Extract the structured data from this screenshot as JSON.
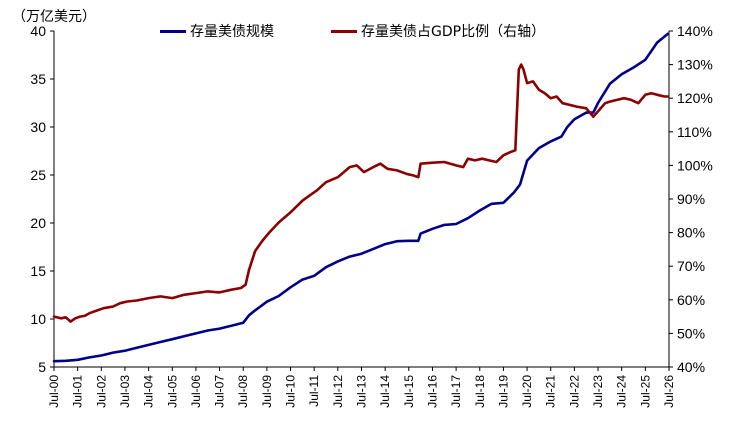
{
  "chart_data": {
    "type": "line",
    "unit_label": "（万亿美元）",
    "colors": {
      "stock": "#00008B",
      "ratio": "#8B0000",
      "axis": "#000000"
    },
    "legend_position": "top",
    "grid": false,
    "left_axis": {
      "min": 5,
      "max": 40,
      "ticks": [
        "5",
        "10",
        "15",
        "20",
        "25",
        "30",
        "35",
        "40"
      ]
    },
    "right_axis": {
      "min": 40,
      "max": 140,
      "ticks": [
        "40%",
        "50%",
        "60%",
        "70%",
        "80%",
        "90%",
        "100%",
        "110%",
        "120%",
        "130%",
        "140%"
      ]
    },
    "x_axis": {
      "start": 2000.5,
      "end": 2026.5,
      "ticks": [
        "Jul-00",
        "Jul-01",
        "Jul-02",
        "Jul-03",
        "Jul-04",
        "Jul-05",
        "Jul-06",
        "Jul-07",
        "Jul-08",
        "Jul-09",
        "Jul-10",
        "Jul-11",
        "Jul-12",
        "Jul-13",
        "Jul-14",
        "Jul-15",
        "Jul-16",
        "Jul-17",
        "Jul-18",
        "Jul-19",
        "Jul-20",
        "Jul-21",
        "Jul-22",
        "Jul-23",
        "Jul-24",
        "Jul-25",
        "Jul-26"
      ]
    },
    "series": [
      {
        "name": "存量美债规模",
        "axis": "left",
        "x": [
          2000.5,
          2001.0,
          2001.5,
          2002.0,
          2002.5,
          2003.0,
          2003.5,
          2004.0,
          2004.5,
          2005.0,
          2005.5,
          2006.0,
          2006.5,
          2007.0,
          2007.5,
          2008.0,
          2008.5,
          2008.75,
          2009.0,
          2009.5,
          2010.0,
          2010.5,
          2011.0,
          2011.5,
          2012.0,
          2012.5,
          2013.0,
          2013.5,
          2014.0,
          2014.5,
          2015.0,
          2015.5,
          2015.9,
          2016.0,
          2016.5,
          2017.0,
          2017.5,
          2018.0,
          2018.5,
          2019.0,
          2019.5,
          2019.95,
          2020.2,
          2020.5,
          2021.0,
          2021.5,
          2021.95,
          2022.2,
          2022.5,
          2023.0,
          2023.3,
          2023.5,
          2024.0,
          2024.5,
          2025.0,
          2025.5,
          2026.0,
          2026.45
        ],
        "y": [
          5.6,
          5.65,
          5.75,
          6.0,
          6.2,
          6.5,
          6.7,
          7.0,
          7.3,
          7.6,
          7.9,
          8.2,
          8.5,
          8.8,
          9.0,
          9.3,
          9.6,
          10.4,
          10.9,
          11.8,
          12.4,
          13.3,
          14.1,
          14.5,
          15.4,
          16.0,
          16.5,
          16.8,
          17.3,
          17.8,
          18.1,
          18.15,
          18.15,
          18.9,
          19.4,
          19.8,
          19.9,
          20.5,
          21.3,
          22.0,
          22.1,
          23.2,
          24.0,
          26.5,
          27.8,
          28.5,
          29.0,
          30.0,
          30.8,
          31.5,
          31.5,
          32.5,
          34.5,
          35.5,
          36.2,
          37.0,
          38.8,
          39.7
        ]
      },
      {
        "name": "存量美债占GDP比例（右轴）",
        "axis": "right",
        "x": [
          2000.5,
          2000.8,
          2001.0,
          2001.2,
          2001.4,
          2001.6,
          2001.8,
          2002.0,
          2002.3,
          2002.6,
          2003.0,
          2003.3,
          2003.6,
          2004.0,
          2004.5,
          2005.0,
          2005.5,
          2006.0,
          2006.5,
          2007.0,
          2007.5,
          2008.0,
          2008.4,
          2008.6,
          2008.75,
          2009.0,
          2009.3,
          2009.6,
          2010.0,
          2010.5,
          2011.0,
          2011.3,
          2011.6,
          2012.0,
          2012.5,
          2013.0,
          2013.3,
          2013.6,
          2014.0,
          2014.3,
          2014.6,
          2015.0,
          2015.4,
          2015.7,
          2015.9,
          2016.0,
          2016.5,
          2017.0,
          2017.5,
          2017.8,
          2018.0,
          2018.3,
          2018.6,
          2018.9,
          2019.2,
          2019.5,
          2019.8,
          2020.0,
          2020.15,
          2020.25,
          2020.35,
          2020.5,
          2020.75,
          2021.0,
          2021.25,
          2021.5,
          2021.75,
          2022.0,
          2022.3,
          2022.6,
          2023.0,
          2023.3,
          2023.55,
          2023.8,
          2024.0,
          2024.3,
          2024.6,
          2024.9,
          2025.2,
          2025.5,
          2025.75,
          2026.0,
          2026.3,
          2026.45
        ],
        "y": [
          55.0,
          54.5,
          54.8,
          53.5,
          54.5,
          55.0,
          55.2,
          56.0,
          56.8,
          57.5,
          58.0,
          59.0,
          59.5,
          59.8,
          60.5,
          61.0,
          60.5,
          61.5,
          62.0,
          62.5,
          62.2,
          63.0,
          63.5,
          64.5,
          69.0,
          74.5,
          77.5,
          80.0,
          83.0,
          86.0,
          89.5,
          91.0,
          92.5,
          95.0,
          96.5,
          99.5,
          100.0,
          98.0,
          99.5,
          100.5,
          99.0,
          98.5,
          97.5,
          97.0,
          96.5,
          100.5,
          100.8,
          101.0,
          100.0,
          99.5,
          102.0,
          101.5,
          102.0,
          101.5,
          101.0,
          103.0,
          104.0,
          104.5,
          128.5,
          130.0,
          128.5,
          124.5,
          125.0,
          122.5,
          121.5,
          120.0,
          120.5,
          118.5,
          118.0,
          117.5,
          117.0,
          114.5,
          116.5,
          118.5,
          119.0,
          119.5,
          120.0,
          119.5,
          118.5,
          121.0,
          121.5,
          121.0,
          120.5,
          120.5
        ]
      }
    ]
  }
}
